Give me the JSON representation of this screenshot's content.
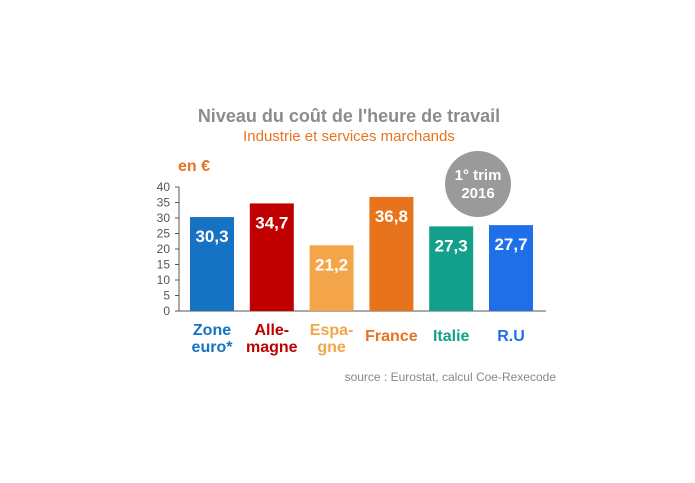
{
  "chart_data": {
    "type": "bar",
    "title": "Niveau du coût de l'heure de travail",
    "subtitle": "Industrie et services marchands",
    "ylabel": "en €",
    "ylim": [
      0,
      40
    ],
    "yticks": [
      0,
      5,
      10,
      15,
      20,
      25,
      30,
      35,
      40
    ],
    "grid": false,
    "categories": [
      {
        "lines": [
          "Zone",
          "euro*"
        ],
        "value": 30.3,
        "label": "30,3",
        "color": "#1672c3"
      },
      {
        "lines": [
          "Alle-",
          "magne"
        ],
        "value": 34.7,
        "label": "34,7",
        "color": "#c00000"
      },
      {
        "lines": [
          "Espa-",
          "gne"
        ],
        "value": 21.2,
        "label": "21,2",
        "color": "#f4a54a"
      },
      {
        "lines": [
          "France"
        ],
        "value": 36.8,
        "label": "36,8",
        "color": "#e8731d"
      },
      {
        "lines": [
          "Italie"
        ],
        "value": 27.3,
        "label": "27,3",
        "color": "#12a08a"
      },
      {
        "lines": [
          "R.U"
        ],
        "value": 27.7,
        "label": "27,7",
        "color": "#1e6fe8"
      }
    ],
    "badge": {
      "line1": "1° trim",
      "line2": "2016",
      "color": "#9a9a9a"
    },
    "source": "source : Eurostat, calcul Coe-Rexecode"
  }
}
